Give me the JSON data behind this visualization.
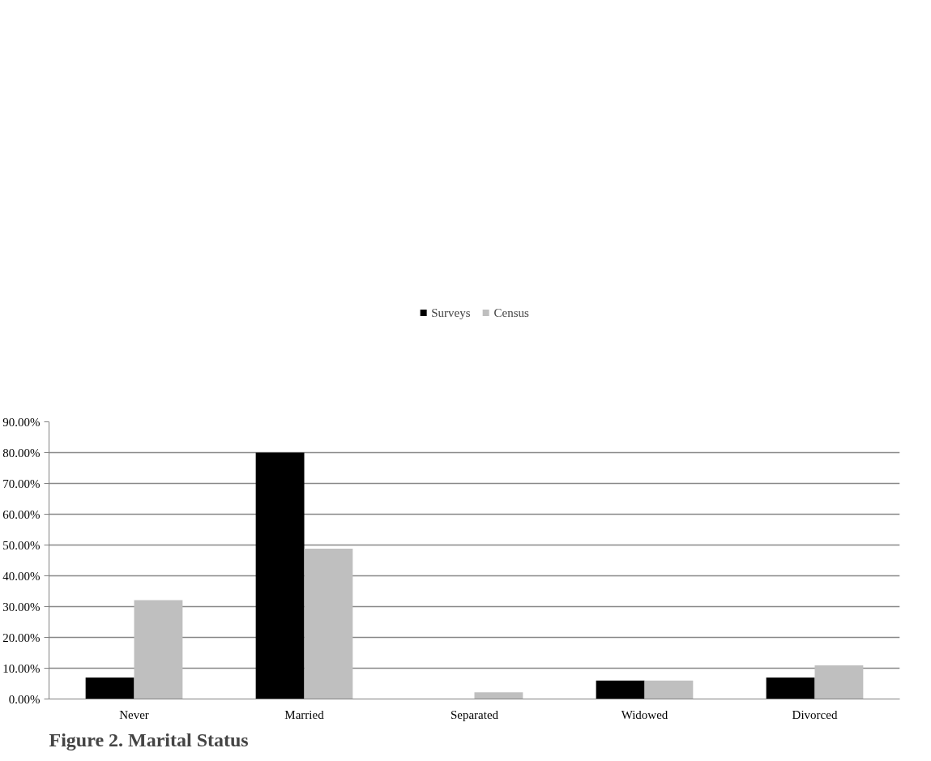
{
  "chart_data": {
    "type": "bar",
    "title": "Figure 2. Marital Status",
    "categories": [
      "Never",
      "Married",
      "Separated",
      "Widowed",
      "Divorced"
    ],
    "series": [
      {
        "name": "Surveys",
        "color": "#000000",
        "values": [
          7.0,
          80.0,
          0,
          6.0,
          7.0
        ]
      },
      {
        "name": "Census",
        "color": "#bfbfbf",
        "values": [
          32.1,
          48.8,
          2.2,
          6.0,
          10.9
        ]
      }
    ],
    "ylim": [
      0,
      90
    ],
    "yticks": [
      {
        "value": 0,
        "label": "0.00%"
      },
      {
        "value": 10,
        "label": "10.00%"
      },
      {
        "value": 20,
        "label": "20.00%"
      },
      {
        "value": 30,
        "label": "30.00%"
      },
      {
        "value": 40,
        "label": "40.00%"
      },
      {
        "value": 50,
        "label": "50.00%"
      },
      {
        "value": 60,
        "label": "60.00%"
      },
      {
        "value": 70,
        "label": "70.00%"
      },
      {
        "value": 80,
        "label": "80.00%"
      },
      {
        "value": 90,
        "label": "90.00%"
      }
    ],
    "grid": "y",
    "legend": "top"
  }
}
